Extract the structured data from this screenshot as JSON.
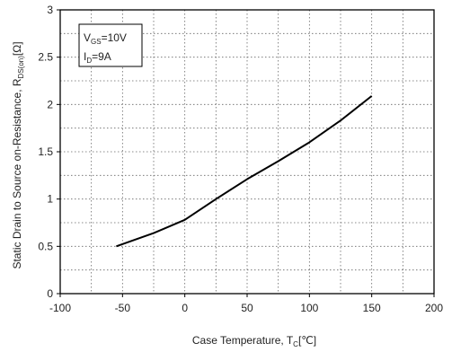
{
  "chart_data": {
    "type": "line",
    "xlabel": "Case Temperature, T",
    "xlabel_sub": "C",
    "xlabel_unit": "[℃]",
    "ylabel": "Static Drain to Source on-Resistance, R",
    "ylabel_sub": "DS(on)",
    "ylabel_unit": "[Ω]",
    "xlim": [
      -100,
      200
    ],
    "ylim": [
      0,
      3
    ],
    "x_ticks": [
      -100,
      -50,
      0,
      50,
      100,
      150,
      200
    ],
    "y_ticks": [
      0,
      0.5,
      1,
      1.5,
      2,
      2.5,
      3
    ],
    "x_tick_labels": [
      "-100",
      "-50",
      "0",
      "50",
      "100",
      "150",
      "200"
    ],
    "y_tick_labels": [
      "0",
      "0.5",
      "1",
      "1.5",
      "2",
      "2.5",
      "3"
    ],
    "grid": true,
    "annotation": {
      "line1_main": "V",
      "line1_sub": "GS",
      "line1_rest": "=10V",
      "line2_main": "I",
      "line2_sub": "D",
      "line2_rest": "=9A"
    },
    "series": [
      {
        "x": [
          -55,
          -25,
          0,
          25,
          50,
          75,
          100,
          125,
          150
        ],
        "y": [
          0.5,
          0.64,
          0.78,
          1.0,
          1.21,
          1.4,
          1.6,
          1.83,
          2.09
        ],
        "color": "#000000"
      }
    ]
  }
}
